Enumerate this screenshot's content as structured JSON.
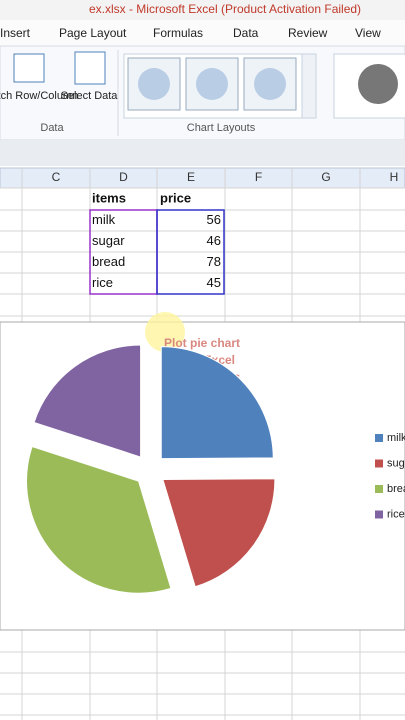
{
  "window": {
    "title": "ex.xlsx - Microsoft Excel (Product Activation Failed)"
  },
  "ribbon": {
    "tabs": [
      "Insert",
      "Page Layout",
      "Formulas",
      "Data",
      "Review",
      "View"
    ],
    "buttons": [
      "Switch Row/Column",
      "Select Data"
    ],
    "groups": [
      "Data",
      "Chart Layouts"
    ]
  },
  "sheet": {
    "columns": [
      "C",
      "D",
      "E",
      "F",
      "G",
      "H"
    ],
    "headers": [
      "items",
      "price"
    ]
  },
  "chart_data": {
    "type": "pie",
    "title": "Plot pie chart in ms Excel for beginners",
    "categories": [
      "milk",
      "sugar",
      "bread",
      "rice"
    ],
    "values": [
      56,
      46,
      78,
      45
    ],
    "colors": [
      "#4f81bd",
      "#c0504d",
      "#9bbb59",
      "#8064a2"
    ],
    "exploded": true,
    "legend": "right"
  }
}
